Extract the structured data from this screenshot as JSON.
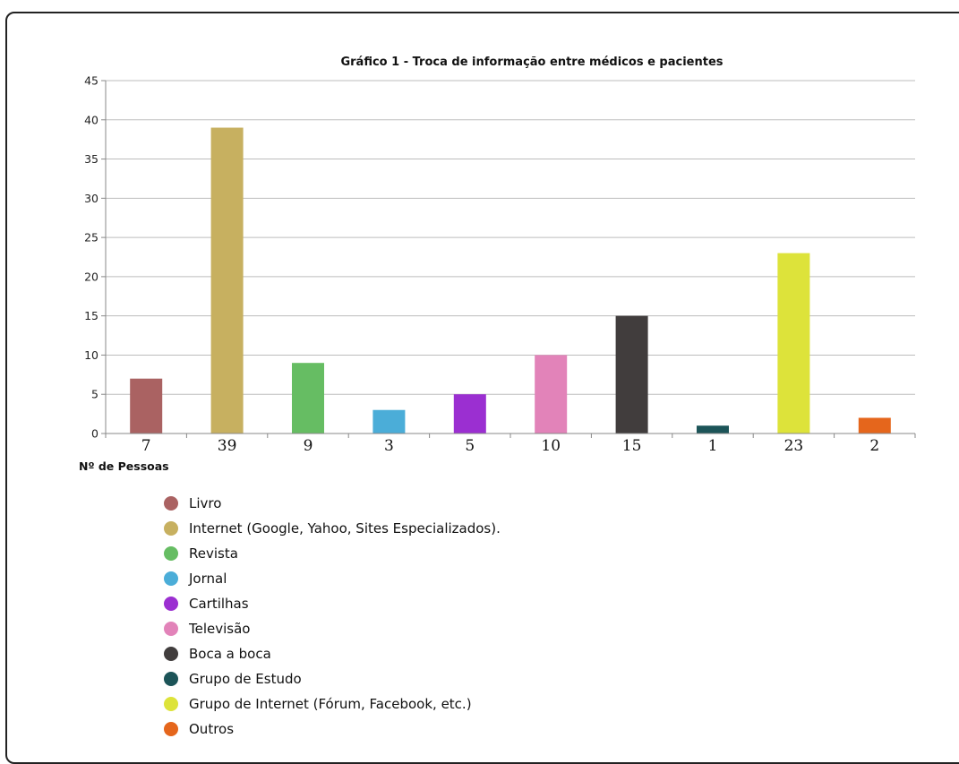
{
  "chart_data": {
    "type": "bar",
    "title": "Gráfico 1 - Troca de informação entre médicos e pacientes",
    "xlabel": "Nº de Pessoas",
    "ylabel": "",
    "ylim": [
      0,
      45
    ],
    "yticks": [
      0,
      5,
      10,
      15,
      20,
      25,
      30,
      35,
      40,
      45
    ],
    "grid": true,
    "legend_position": "bottom-left",
    "categories": [
      "7",
      "39",
      "9",
      "3",
      "5",
      "10",
      "15",
      "1",
      "23",
      "2"
    ],
    "values": [
      7,
      39,
      9,
      3,
      5,
      10,
      15,
      1,
      23,
      2
    ],
    "legend": [
      {
        "label": "Livro",
        "color": "#aa6262"
      },
      {
        "label": "Internet (Google, Yahoo, Sites Especializados).",
        "color": "#c7b060"
      },
      {
        "label": "Revista",
        "color": "#66bd63"
      },
      {
        "label": "Jornal",
        "color": "#4badd8"
      },
      {
        "label": "Cartilhas",
        "color": "#9b2fd1"
      },
      {
        "label": "Televisão",
        "color": "#e283b9"
      },
      {
        "label": "Boca a boca",
        "color": "#413d3d"
      },
      {
        "label": "Grupo de Estudo",
        "color": "#1c5458"
      },
      {
        "label": "Grupo de Internet (Fórum, Facebook, etc.)",
        "color": "#dde33a"
      },
      {
        "label": "Outros",
        "color": "#e5661c"
      }
    ]
  }
}
